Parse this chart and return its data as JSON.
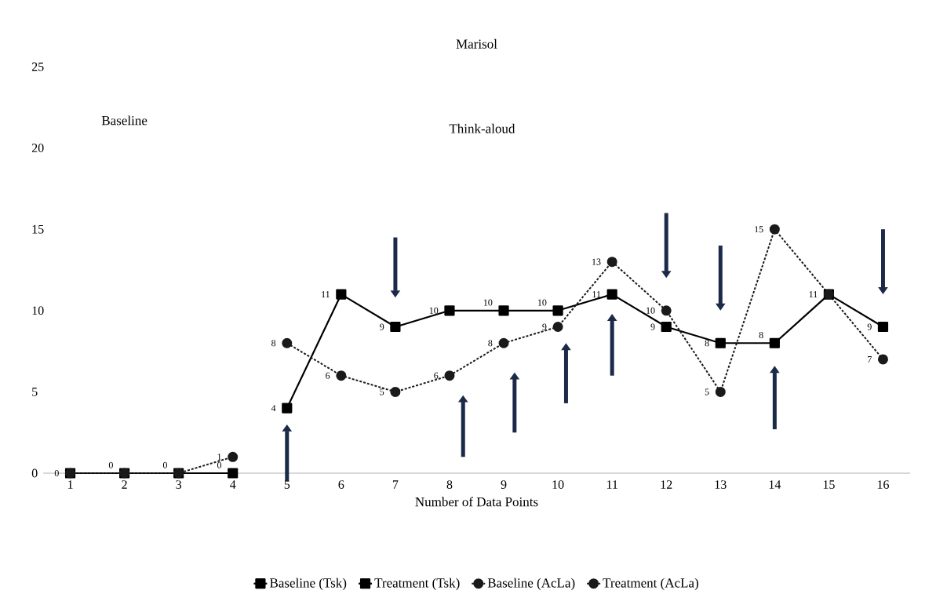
{
  "chart_data": {
    "type": "line",
    "title": "Marisol",
    "xlabel": "Number of  Data Points",
    "annotations": [
      "Baseline",
      "Think-aloud"
    ],
    "categories": [
      "1",
      "2",
      "3",
      "4",
      "5",
      "6",
      "7",
      "8",
      "9",
      "10",
      "11",
      "12",
      "13",
      "14",
      "15",
      "16"
    ],
    "series": [
      {
        "name": "Baseline (Tsk)",
        "color": "#000000",
        "marker": "square",
        "line_style": "solid",
        "values": [
          0,
          0,
          0,
          0,
          null,
          null,
          null,
          null,
          null,
          null,
          null,
          null,
          null,
          null,
          null,
          null
        ],
        "value_labels": [
          "0",
          "0",
          "0",
          "0",
          null,
          null,
          null,
          null,
          null,
          null,
          null,
          null,
          null,
          null,
          null,
          null
        ]
      },
      {
        "name": "Treatment (Tsk)",
        "color": "#000000",
        "marker": "square",
        "line_style": "solid",
        "values": [
          null,
          null,
          null,
          null,
          4,
          11,
          9,
          10,
          10,
          10,
          11,
          9,
          8,
          8,
          11,
          9
        ],
        "value_labels": [
          null,
          null,
          null,
          null,
          "4",
          "11",
          "9",
          "10",
          "10",
          "10",
          "11",
          "9",
          "8",
          "8",
          "11",
          "9"
        ]
      },
      {
        "name": "Baseline (AcLa)",
        "color": "#1a1a1a",
        "marker": "circle",
        "line_style": "dotted",
        "values": [
          0,
          0,
          0,
          1,
          null,
          null,
          null,
          null,
          null,
          null,
          null,
          null,
          null,
          null,
          null,
          null
        ],
        "value_labels": [
          null,
          null,
          null,
          "1",
          null,
          null,
          null,
          null,
          null,
          null,
          null,
          null,
          null,
          null,
          null,
          null
        ]
      },
      {
        "name": "Treatment (AcLa)",
        "color": "#1a1a1a",
        "marker": "circle",
        "line_style": "dotted",
        "values": [
          null,
          null,
          null,
          null,
          8,
          6,
          5,
          6,
          8,
          9,
          13,
          10,
          5,
          15,
          11,
          7
        ],
        "value_labels": [
          null,
          null,
          null,
          null,
          "8",
          "6",
          "5",
          "6",
          "8",
          "9",
          "13",
          "10",
          "5",
          "15",
          null,
          "7"
        ]
      }
    ],
    "ylim": [
      0,
      25
    ],
    "yticks": [
      0,
      5,
      10,
      15,
      20,
      25
    ],
    "grid": false,
    "legend": "bottom"
  }
}
